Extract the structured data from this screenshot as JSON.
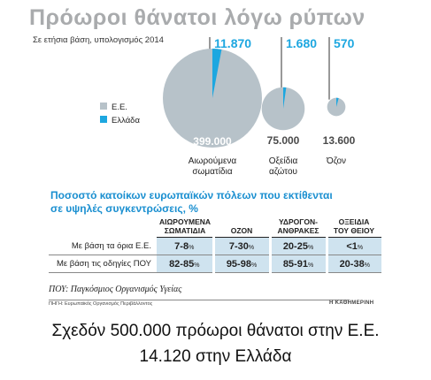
{
  "infographic": {
    "title": "Πρόωροι θάνατοι λόγω ρύπων",
    "subtitle": "Σε ετήσια βάση, υπολογισμός 2014",
    "legend": [
      {
        "label": "Ε.Ε.",
        "color": "#b7c2c9"
      },
      {
        "label": "Ελλάδα",
        "color": "#1da7e0"
      }
    ]
  },
  "chart_data": {
    "type": "pie",
    "series": [
      {
        "name": "Ε.Ε.",
        "values": [
          399000,
          75000,
          13600
        ],
        "labels": [
          "399.000",
          "75.000",
          "13.600"
        ]
      },
      {
        "name": "Ελλάδα",
        "values": [
          11870,
          1680,
          570
        ],
        "labels": [
          "11.870",
          "1.680",
          "570"
        ]
      }
    ],
    "categories": [
      {
        "line1": "Αιωρούμενα",
        "line2": "σωματίδια"
      },
      {
        "line1": "Οξείδια",
        "line2": "αζώτου"
      },
      {
        "line1": "Όζον",
        "line2": ""
      }
    ],
    "colors": {
      "eu": "#b7c2c9",
      "greece": "#1da7e0"
    }
  },
  "exposure": {
    "title_line1": "Ποσοστό κατοίκων ευρωπαϊκών πόλεων που εκτίθενται",
    "title_line2": "σε υψηλές συγκεντρώσεις, %",
    "columns": [
      {
        "line1": "ΑΙΩΡΟΥΜΕΝΑ",
        "line2": "ΣΩΜΑΤΙΔΙΑ"
      },
      {
        "line1": "ΟΖΟΝ",
        "line2": ""
      },
      {
        "line1": "ΥΔΡΟΓΟΝ-",
        "line2": "ΑΝΘΡΑΚΕΣ"
      },
      {
        "line1": "ΟΞΕΙΔΙΑ",
        "line2": "ΤΟΥ ΘΕΙΟΥ"
      }
    ],
    "rows": [
      {
        "label": "Με βάση τα όρια Ε.Ε.",
        "values": [
          "7-8",
          "7-30",
          "20-25",
          "<1"
        ]
      },
      {
        "label": "Με βάση τις οδηγίες ΠΟΥ",
        "values": [
          "82-85",
          "95-98",
          "85-91",
          "20-38"
        ]
      }
    ],
    "unit": "%"
  },
  "footnote": "ΠΟΥ: Παγκόσμιος Οργανισμός Υγείας",
  "source": "ΠΗΓΗ: Ευρωπαϊκός Οργανισμός Περιβάλλοντος",
  "publisher": "Η ΚΑΘΗΜΕΡΙΝΗ",
  "caption": {
    "line1": "Σχεδόν 500.000 πρόωροι θάνατοι στην Ε.Ε.",
    "line2": "14.120 στην Ελλάδα"
  }
}
